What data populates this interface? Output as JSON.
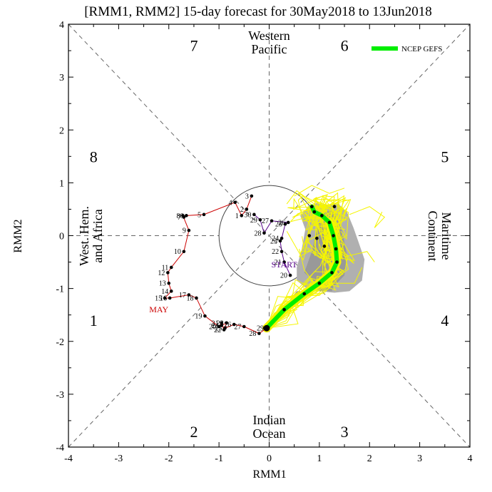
{
  "chart_data": {
    "type": "line",
    "title": "[RMM1, RMM2] 15-day forecast for 30May2018 to 13Jun2018",
    "xlabel": "RMM1",
    "ylabel": "RMM2",
    "xlim": [
      -4,
      4
    ],
    "ylim": [
      -4,
      4
    ],
    "xticks": [
      "-4",
      "-3",
      "-2",
      "-1",
      "0",
      "1",
      "2",
      "3",
      "4"
    ],
    "yticks": [
      "-4",
      "-3",
      "-2",
      "-1",
      "0",
      "1",
      "2",
      "3",
      "4"
    ],
    "phases": [
      {
        "label": "1",
        "x": -3.5,
        "y": -1.6
      },
      {
        "label": "2",
        "x": -1.5,
        "y": -3.7
      },
      {
        "label": "3",
        "x": 1.5,
        "y": -3.7
      },
      {
        "label": "4",
        "x": 3.5,
        "y": -1.6
      },
      {
        "label": "5",
        "x": 3.5,
        "y": 1.5
      },
      {
        "label": "6",
        "x": 1.5,
        "y": 3.6
      },
      {
        "label": "7",
        "x": -1.5,
        "y": 3.6
      },
      {
        "label": "8",
        "x": -3.5,
        "y": 1.5
      }
    ],
    "regions": [
      {
        "name": "west-pacific",
        "lines": [
          "Western",
          "Pacific"
        ]
      },
      {
        "name": "indian-ocean",
        "lines": [
          "Indian",
          "Ocean"
        ]
      },
      {
        "name": "west-hem-africa",
        "lines": [
          "West. Hem.",
          "and Africa"
        ]
      },
      {
        "name": "maritime-continent",
        "lines": [
          "Maritime",
          "Continent"
        ]
      }
    ],
    "legend": {
      "label": "NCEP GEFS",
      "color": "#00ee00",
      "placement": "top-right"
    },
    "month_labels": [
      {
        "text": "MAY",
        "color": "#cc0000",
        "x": -2.2,
        "y": -1.45
      },
      {
        "text": "START",
        "color": "#550088",
        "x": 0.3,
        "y": -0.6
      }
    ],
    "may_series": {
      "name": "MAY",
      "color": "#cc0000",
      "points": [
        {
          "day": "3",
          "x": -0.35,
          "y": 0.75
        },
        {
          "day": "2",
          "x": -0.45,
          "y": 0.5
        },
        {
          "day": "1",
          "x": -0.55,
          "y": 0.38
        },
        {
          "day": "4",
          "x": -0.68,
          "y": 0.63
        },
        {
          "day": "5",
          "x": -1.3,
          "y": 0.4
        },
        {
          "day": "6",
          "x": -1.65,
          "y": 0.38
        },
        {
          "day": "7",
          "x": -1.7,
          "y": 0.35
        },
        {
          "day": "8",
          "x": -1.72,
          "y": 0.38
        },
        {
          "day": "9",
          "x": -1.6,
          "y": 0.1
        },
        {
          "day": "10",
          "x": -1.7,
          "y": -0.3
        },
        {
          "day": "11",
          "x": -1.95,
          "y": -0.6
        },
        {
          "day": "12",
          "x": -2.02,
          "y": -0.7
        },
        {
          "day": "13",
          "x": -2.0,
          "y": -0.9
        },
        {
          "day": "14",
          "x": -1.95,
          "y": -1.05
        },
        {
          "day": "15",
          "x": -2.08,
          "y": -1.18
        },
        {
          "day": "16",
          "x": -1.98,
          "y": -1.18
        },
        {
          "day": "17",
          "x": -1.6,
          "y": -1.12
        },
        {
          "day": "18",
          "x": -1.45,
          "y": -1.18
        },
        {
          "day": "19",
          "x": -1.28,
          "y": -1.52
        },
        {
          "day": "20",
          "x": -1.0,
          "y": -1.72
        },
        {
          "day": "21",
          "x": -0.95,
          "y": -1.65
        },
        {
          "day": "22",
          "x": -0.9,
          "y": -1.78
        },
        {
          "day": "23",
          "x": -0.85,
          "y": -1.65
        },
        {
          "day": "24",
          "x": -0.95,
          "y": -1.7
        },
        {
          "day": "25",
          "x": -0.88,
          "y": -1.75
        },
        {
          "day": "26",
          "x": -0.7,
          "y": -1.68
        },
        {
          "day": "27",
          "x": -0.5,
          "y": -1.72
        },
        {
          "day": "28",
          "x": -0.2,
          "y": -1.85
        },
        {
          "day": "29",
          "x": -0.05,
          "y": -1.75
        }
      ]
    },
    "april_series": {
      "name": "",
      "color": "#550088",
      "points": [
        {
          "day": "20",
          "x": 0.42,
          "y": -0.75
        },
        {
          "day": "21",
          "x": 0.3,
          "y": -0.5
        },
        {
          "day": "22",
          "x": 0.25,
          "y": -0.3
        },
        {
          "day": "23",
          "x": 0.22,
          "y": -0.1
        },
        {
          "day": "24",
          "x": 0.25,
          "y": -0.05
        },
        {
          "day": "25",
          "x": 0.32,
          "y": 0.22
        },
        {
          "day": "26",
          "x": 0.38,
          "y": 0.25
        },
        {
          "day": "27",
          "x": 0.05,
          "y": 0.28
        },
        {
          "day": "28",
          "x": -0.1,
          "y": 0.05
        },
        {
          "day": "29",
          "x": -0.18,
          "y": 0.3
        },
        {
          "day": "30",
          "x": -0.3,
          "y": 0.4
        }
      ]
    },
    "forecast_series": {
      "name": "NCEP GEFS",
      "color": "#00ee00",
      "start": {
        "x": -0.05,
        "y": -1.75
      },
      "points": [
        {
          "x": 0.3,
          "y": -1.4
        },
        {
          "x": 0.7,
          "y": -1.1
        },
        {
          "x": 1.0,
          "y": -0.9
        },
        {
          "x": 1.25,
          "y": -0.7
        },
        {
          "x": 1.35,
          "y": -0.5
        },
        {
          "x": 1.33,
          "y": -0.25
        },
        {
          "x": 1.28,
          "y": 0.0
        },
        {
          "x": 1.2,
          "y": 0.25
        },
        {
          "x": 1.05,
          "y": 0.38
        },
        {
          "x": 0.9,
          "y": 0.45
        },
        {
          "x": 0.85,
          "y": 0.55
        },
        {
          "x": 1.3,
          "y": 0.55
        },
        {
          "x": 1.1,
          "y": -0.2
        },
        {
          "x": 0.95,
          "y": -0.05
        },
        {
          "x": 0.8,
          "y": 0.0
        }
      ]
    }
  },
  "colors": {
    "forecast_green": "#00ee00",
    "ensemble_yellow": "#f5f500",
    "spread_gray": "#b0b0b0",
    "may_red": "#cc0000",
    "april_purple": "#550088"
  }
}
